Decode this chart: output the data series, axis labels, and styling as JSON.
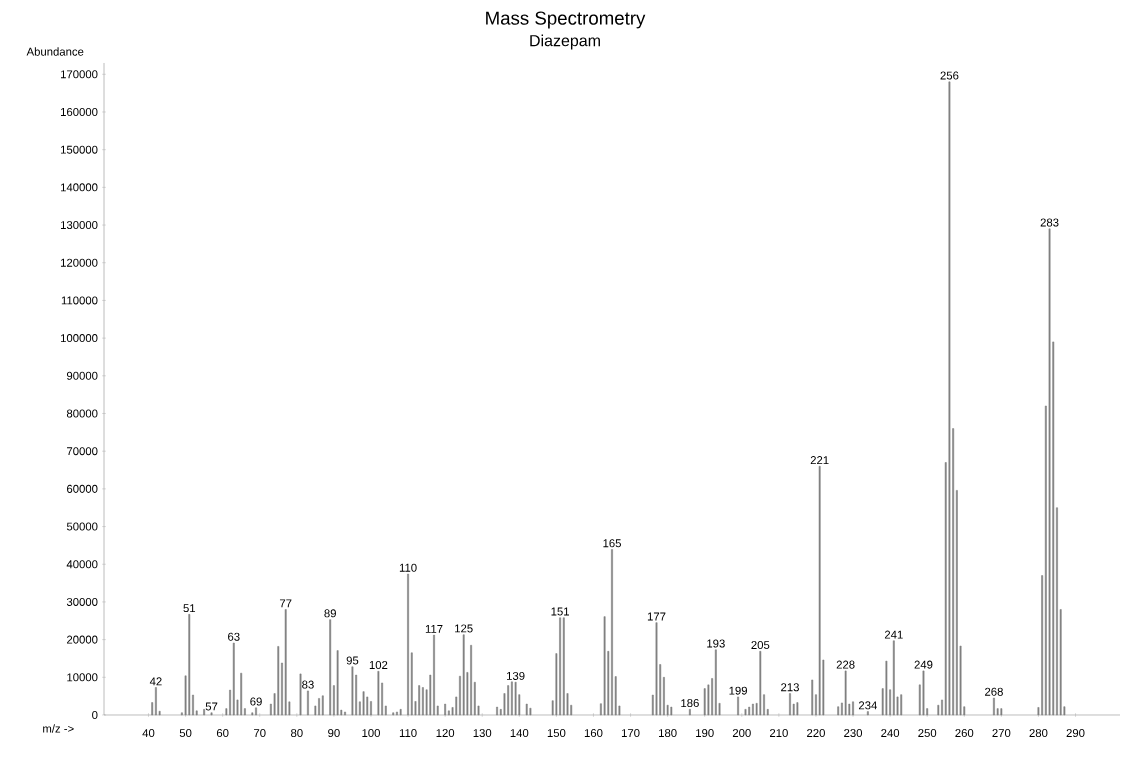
{
  "chart_data": {
    "type": "bar",
    "title": "Mass Spectrometry",
    "subtitle": "Diazepam",
    "xlabel": "m/z ->",
    "ylabel": "Abundance",
    "x": [
      41,
      42,
      43,
      49,
      50,
      51,
      52,
      53,
      55,
      57,
      61,
      62,
      63,
      64,
      65,
      66,
      68,
      69,
      73,
      74,
      75,
      76,
      77,
      78,
      81,
      83,
      85,
      86,
      87,
      89,
      90,
      91,
      92,
      93,
      95,
      96,
      97,
      98,
      99,
      100,
      102,
      103,
      104,
      106,
      107,
      108,
      110,
      111,
      112,
      113,
      114,
      115,
      116,
      117,
      118,
      120,
      121,
      122,
      123,
      124,
      125,
      126,
      127,
      128,
      129,
      134,
      135,
      136,
      137,
      138,
      139,
      140,
      142,
      143,
      149,
      150,
      151,
      152,
      153,
      154,
      162,
      163,
      164,
      165,
      166,
      167,
      176,
      177,
      178,
      179,
      180,
      181,
      186,
      190,
      191,
      192,
      193,
      194,
      199,
      201,
      202,
      203,
      204,
      205,
      206,
      207,
      213,
      214,
      215,
      219,
      220,
      221,
      222,
      226,
      227,
      228,
      229,
      230,
      234,
      238,
      239,
      240,
      241,
      242,
      243,
      248,
      249,
      250,
      253,
      254,
      255,
      256,
      257,
      258,
      259,
      260,
      268,
      269,
      270,
      280,
      281,
      282,
      283,
      284,
      285,
      286,
      287
    ],
    "values": [
      3300,
      7300,
      1000,
      600,
      10400,
      26700,
      5300,
      1100,
      1500,
      600,
      1700,
      6600,
      19100,
      4000,
      11100,
      1700,
      600,
      1900,
      2900,
      5700,
      18200,
      13800,
      28000,
      3500,
      10900,
      6400,
      2400,
      4400,
      5100,
      25300,
      7800,
      17100,
      1300,
      800,
      12800,
      10600,
      3500,
      6200,
      4800,
      3600,
      11600,
      8500,
      2400,
      600,
      800,
      1500,
      37400,
      16500,
      3600,
      7800,
      7300,
      6700,
      10600,
      21200,
      2400,
      2900,
      1100,
      2000,
      4800,
      10300,
      21300,
      11300,
      18500,
      8700,
      2400,
      2100,
      1500,
      5700,
      7800,
      8800,
      8700,
      5400,
      2900,
      1800,
      3800,
      16300,
      25800,
      25800,
      5700,
      2600,
      3000,
      26100,
      16900,
      43900,
      10200,
      2400,
      5300,
      24500,
      13400,
      10000,
      2600,
      2100,
      1500,
      7000,
      8000,
      9700,
      17300,
      3100,
      4800,
      1500,
      2100,
      2900,
      3100,
      16900,
      5400,
      1500,
      5700,
      2900,
      3300,
      9300,
      5400,
      66000,
      14600,
      2200,
      3200,
      11700,
      2900,
      3500,
      900,
      7000,
      14300,
      6700,
      19700,
      4800,
      5400,
      8000,
      11700,
      1700,
      2600,
      4000,
      67000,
      168000,
      76000,
      59600,
      18300,
      2200,
      4500,
      1700,
      1700,
      2000,
      37000,
      82000,
      129000,
      99000,
      55000,
      28000,
      2200
    ],
    "color": "#808080",
    "xlim": [
      28,
      302
    ],
    "ylim": [
      0,
      173000
    ],
    "xticks": [
      40,
      50,
      60,
      70,
      80,
      90,
      100,
      110,
      120,
      130,
      140,
      150,
      160,
      170,
      180,
      190,
      200,
      210,
      220,
      230,
      240,
      250,
      260,
      270,
      280,
      290
    ],
    "yticks": [
      0,
      10000,
      20000,
      30000,
      40000,
      50000,
      60000,
      70000,
      80000,
      90000,
      100000,
      110000,
      120000,
      130000,
      140000,
      150000,
      160000,
      170000
    ],
    "grid": false,
    "annotations": [
      {
        "text": "42",
        "x": 42,
        "y": 7300
      },
      {
        "text": "51",
        "x": 51,
        "y": 26700
      },
      {
        "text": "57",
        "x": 57,
        "y": 600
      },
      {
        "text": "63",
        "x": 63,
        "y": 19100
      },
      {
        "text": "69",
        "x": 69,
        "y": 1900
      },
      {
        "text": "77",
        "x": 77,
        "y": 28000
      },
      {
        "text": "83",
        "x": 83,
        "y": 6400
      },
      {
        "text": "89",
        "x": 89,
        "y": 25300
      },
      {
        "text": "95",
        "x": 95,
        "y": 12800
      },
      {
        "text": "102",
        "x": 102,
        "y": 11600
      },
      {
        "text": "110",
        "x": 110,
        "y": 37400
      },
      {
        "text": "117",
        "x": 117,
        "y": 21200
      },
      {
        "text": "125",
        "x": 125,
        "y": 21300
      },
      {
        "text": "139",
        "x": 139,
        "y": 8700
      },
      {
        "text": "151",
        "x": 151,
        "y": 25800
      },
      {
        "text": "165",
        "x": 165,
        "y": 43900
      },
      {
        "text": "177",
        "x": 177,
        "y": 24500
      },
      {
        "text": "186",
        "x": 186,
        "y": 1500
      },
      {
        "text": "193",
        "x": 193,
        "y": 17300
      },
      {
        "text": "199",
        "x": 199,
        "y": 4800
      },
      {
        "text": "205",
        "x": 205,
        "y": 16900
      },
      {
        "text": "213",
        "x": 213,
        "y": 5700
      },
      {
        "text": "221",
        "x": 221,
        "y": 66000
      },
      {
        "text": "228",
        "x": 228,
        "y": 11700
      },
      {
        "text": "234",
        "x": 234,
        "y": 900
      },
      {
        "text": "241",
        "x": 241,
        "y": 19700
      },
      {
        "text": "249",
        "x": 249,
        "y": 11700
      },
      {
        "text": "256",
        "x": 256,
        "y": 168000
      },
      {
        "text": "268",
        "x": 268,
        "y": 4500
      },
      {
        "text": "283",
        "x": 283,
        "y": 129000
      }
    ]
  }
}
